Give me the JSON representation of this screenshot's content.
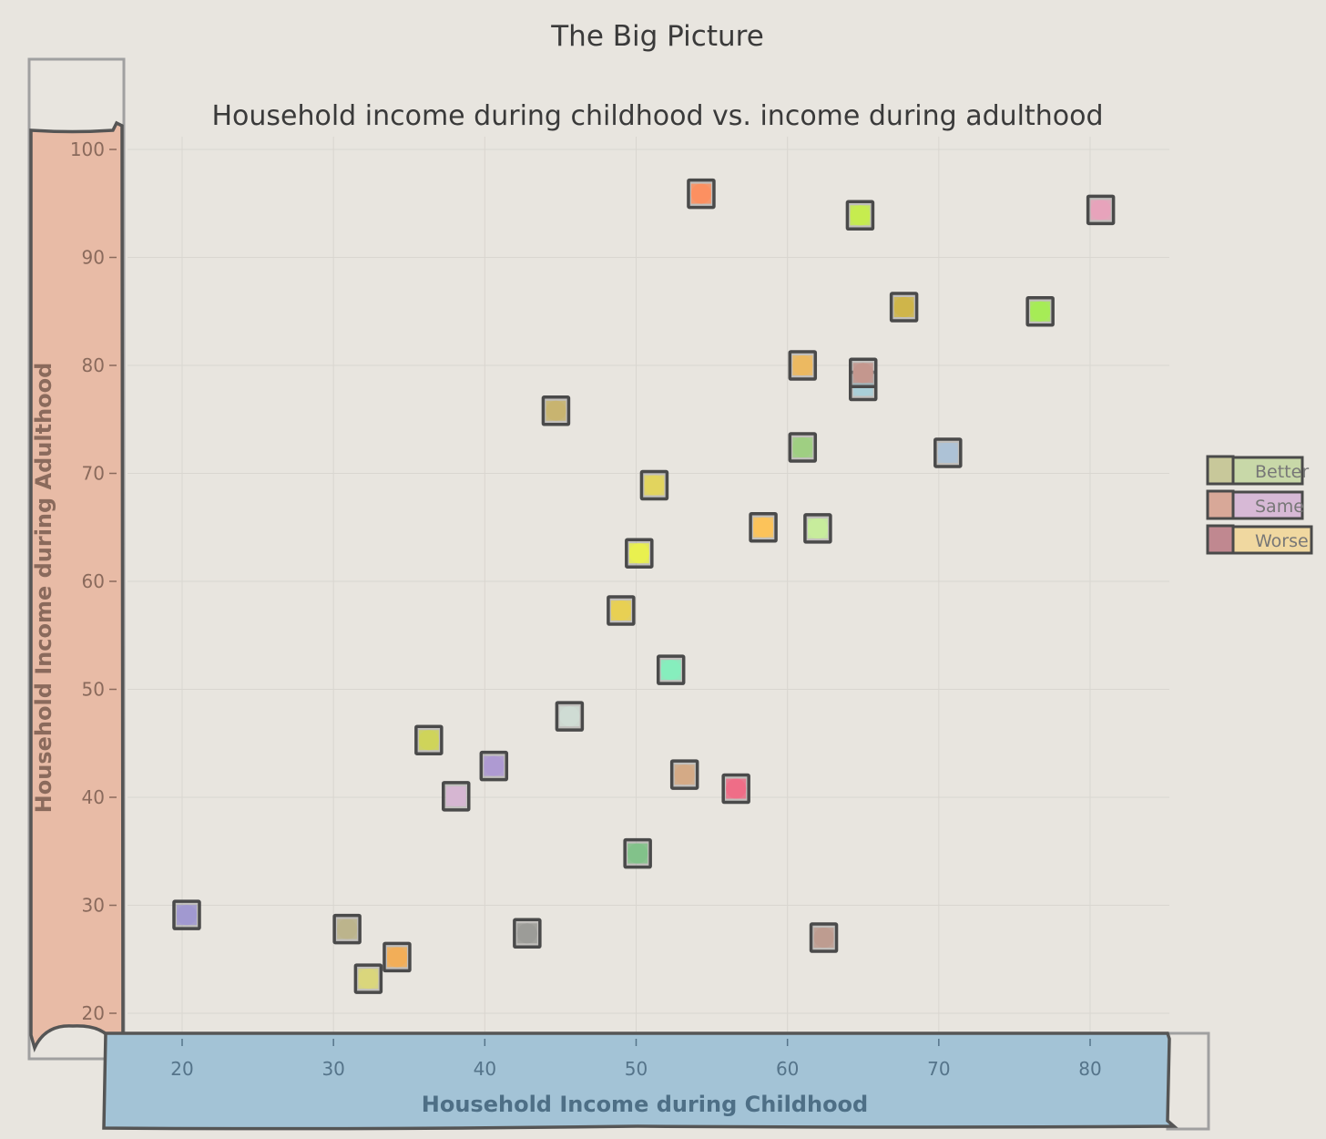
{
  "chart_data": {
    "type": "scatter",
    "title": "The Big Picture",
    "subtitle": "Household income during childhood vs. income during adulthood",
    "xlabel": "Household Income during Childhood",
    "ylabel": "Household Income during Adulthood",
    "xlim": [
      15,
      85
    ],
    "ylim": [
      18,
      101
    ],
    "xticks": [
      "20",
      "30",
      "40",
      "50",
      "60",
      "70",
      "80"
    ],
    "yticks": [
      "20",
      "30",
      "40",
      "50",
      "60",
      "70",
      "80",
      "90",
      "100"
    ],
    "grid": true,
    "legend_position": "right",
    "legend": [
      {
        "label": "Better",
        "color": "#c8d8a8",
        "marker": "#c8c89a"
      },
      {
        "label": "Same",
        "color": "#d7b9d6",
        "marker": "#d8a898"
      },
      {
        "label": "Worse",
        "color": "#f0d8a0",
        "marker": "#c08890"
      }
    ],
    "points": [
      {
        "x": 54.3,
        "y": 95.9,
        "color": "#fb9062"
      },
      {
        "x": 64.8,
        "y": 93.9,
        "color": "#c6ec4f"
      },
      {
        "x": 80.7,
        "y": 94.4,
        "color": "#e6a3bb"
      },
      {
        "x": 67.7,
        "y": 85.4,
        "color": "#cfb54a"
      },
      {
        "x": 76.7,
        "y": 85.0,
        "color": "#a6ec56"
      },
      {
        "x": 61.0,
        "y": 80.0,
        "color": "#ecb962"
      },
      {
        "x": 65.0,
        "y": 78.1,
        "color": "#a9cfd8"
      },
      {
        "x": 65.0,
        "y": 79.3,
        "color": "#c4978e"
      },
      {
        "x": 44.7,
        "y": 75.8,
        "color": "#c8b470"
      },
      {
        "x": 61.0,
        "y": 72.4,
        "color": "#9fcf82"
      },
      {
        "x": 70.6,
        "y": 71.9,
        "color": "#adc2d6"
      },
      {
        "x": 51.2,
        "y": 68.9,
        "color": "#e2d35e"
      },
      {
        "x": 58.4,
        "y": 65.0,
        "color": "#fbc35a"
      },
      {
        "x": 62.0,
        "y": 64.9,
        "color": "#c7ec9c"
      },
      {
        "x": 50.2,
        "y": 62.6,
        "color": "#e9f04f"
      },
      {
        "x": 49.0,
        "y": 57.3,
        "color": "#e8d054"
      },
      {
        "x": 52.3,
        "y": 51.8,
        "color": "#86edbd"
      },
      {
        "x": 45.6,
        "y": 47.5,
        "color": "#cfdcd3"
      },
      {
        "x": 36.3,
        "y": 45.3,
        "color": "#cfd45a"
      },
      {
        "x": 40.6,
        "y": 42.9,
        "color": "#ae9ad2"
      },
      {
        "x": 53.2,
        "y": 42.1,
        "color": "#d4aa86"
      },
      {
        "x": 56.6,
        "y": 40.8,
        "color": "#ee6d87"
      },
      {
        "x": 38.1,
        "y": 40.1,
        "color": "#d6b6d2"
      },
      {
        "x": 50.1,
        "y": 34.8,
        "color": "#82c28a"
      },
      {
        "x": 20.3,
        "y": 29.1,
        "color": "#a199d0"
      },
      {
        "x": 30.9,
        "y": 27.8,
        "color": "#bcb48c"
      },
      {
        "x": 42.8,
        "y": 27.4,
        "color": "#9c9c98"
      },
      {
        "x": 62.4,
        "y": 27.0,
        "color": "#be9c90"
      },
      {
        "x": 34.2,
        "y": 25.2,
        "color": "#f2ae58"
      },
      {
        "x": 32.3,
        "y": 23.2,
        "color": "#d9d67c"
      }
    ]
  },
  "colors": {
    "background": "#e8e5df",
    "y_axis_panel": "#e8bba6",
    "x_axis_panel": "#a3c3d6",
    "ylabel_text": "#8a6a5c",
    "xlabel_text": "#4e6f86",
    "frame": "#a0a0a0"
  }
}
